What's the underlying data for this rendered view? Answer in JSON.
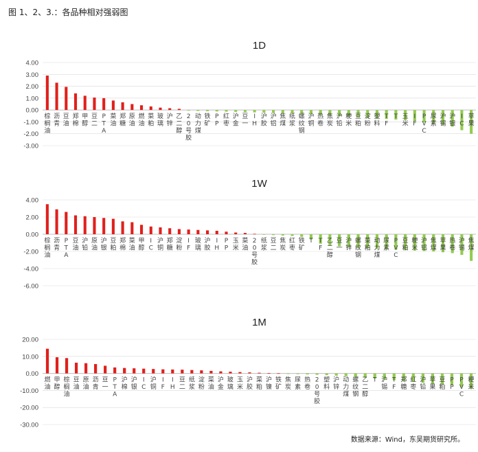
{
  "page_title": "图 1、2、3.：各品种相对强弱图",
  "source_text": "数据来源：Wind，东吴期货研究所。",
  "colors": {
    "positive": "#e0201c",
    "negative": "#92cc4f",
    "grid": "#d9d9d9",
    "axis": "#bfbfbf"
  },
  "chart_data": [
    {
      "type": "bar",
      "title": "1D",
      "ylim": [
        -3,
        4
      ],
      "yticks": [
        "4.00",
        "3.00",
        "2.00",
        "1.00",
        "0.00",
        "-1.00",
        "-2.00",
        "-3.00"
      ],
      "categories": [
        "棕榈油",
        "沥青",
        "豆油",
        "郑棉",
        "甲醇",
        "豆二",
        "PTA",
        "菜油",
        "郑糖",
        "原油",
        "燃油",
        "菜粕",
        "玻璃",
        "沪锌",
        "乙二醇",
        "20号胶",
        "动力煤",
        "铁矿",
        "PP",
        "红枣",
        "沪金",
        "豆一",
        "IH",
        "沪胶",
        "沪铝",
        "焦煤",
        "纸浆",
        "螺纹钢",
        "沪铜",
        "热卷",
        "焦炭",
        "沪铅",
        "粳米",
        "豆粕",
        "淀粉",
        "塑料",
        "TF",
        "T",
        "玉米",
        "IF",
        "PVC",
        "尿素",
        "沪锡",
        "沪银",
        "IC",
        "苹果"
      ],
      "values": [
        2.9,
        2.3,
        1.95,
        1.4,
        1.2,
        1.05,
        1.0,
        0.8,
        0.65,
        0.5,
        0.4,
        0.3,
        0.2,
        0.15,
        0.1,
        -0.05,
        -0.08,
        -0.1,
        -0.12,
        -0.14,
        -0.16,
        -0.18,
        -0.2,
        -0.22,
        -0.25,
        -0.28,
        -0.3,
        -0.33,
        -0.36,
        -0.4,
        -0.45,
        -0.5,
        -0.55,
        -0.6,
        -0.65,
        -0.7,
        -0.75,
        -0.8,
        -0.85,
        -0.95,
        -1.05,
        -1.15,
        -1.25,
        -1.4,
        -1.7,
        -2.0
      ]
    },
    {
      "type": "bar",
      "title": "1W",
      "ylim": [
        -6,
        4
      ],
      "yticks": [
        "4.00",
        "2.00",
        "0.00",
        "-2.00",
        "-4.00",
        "-6.00"
      ],
      "categories": [
        "棕榈油",
        "沥青",
        "PTA",
        "豆油",
        "沪铅",
        "原油",
        "沪银",
        "豆粕",
        "郑棉",
        "菜油",
        "甲醇",
        "IC",
        "沪铜",
        "郑糖",
        "淀粉",
        "IF",
        "玻璃",
        "沪胶",
        "IH",
        "PP",
        "玉米",
        "菜油",
        "20号胶",
        "纸浆",
        "豆二",
        "焦炭",
        "红枣",
        "铁矿",
        "T",
        "TF",
        "乙二醇",
        "豆一",
        "沪锌",
        "螺纹钢",
        "菜粕",
        "动力煤",
        "尿素",
        "PVC",
        "豆粕",
        "粳米",
        "沪铝",
        "焦煤",
        "苹果",
        "热卷",
        "沪锡",
        "焦煤"
      ],
      "values": [
        3.5,
        2.9,
        2.6,
        2.2,
        2.1,
        2.0,
        1.9,
        1.8,
        1.5,
        1.4,
        1.1,
        0.9,
        0.8,
        0.7,
        0.6,
        0.55,
        0.5,
        0.45,
        0.4,
        0.3,
        0.2,
        0.15,
        0.05,
        -0.05,
        -0.1,
        -0.15,
        -0.2,
        -0.3,
        -0.6,
        -1.1,
        -1.3,
        -1.4,
        -1.5,
        -1.6,
        -1.65,
        -1.7,
        -1.75,
        -1.8,
        -1.85,
        -1.9,
        -1.95,
        -2.0,
        -2.1,
        -2.2,
        -2.4,
        -3.1
      ]
    },
    {
      "type": "bar",
      "title": "1M",
      "ylim": [
        -30,
        20
      ],
      "yticks": [
        "20.00",
        "10.00",
        "0.00",
        "-10.00",
        "-20.00",
        "-30.00"
      ],
      "categories": [
        "燃油",
        "甲醇",
        "棕榈油",
        "豆油",
        "原油",
        "沥青",
        "豆一",
        "PTA",
        "沪棉",
        "沪银",
        "IC",
        "沪铜",
        "IF",
        "IH",
        "豆二",
        "纸浆",
        "淀粉",
        "菜油",
        "沪金",
        "玻璃",
        "玉米",
        "沪胶",
        "菜粕",
        "沪镍",
        "铁矿",
        "焦炭",
        "尿素",
        "热卷",
        "20号胶",
        "塑料",
        "沪锌",
        "动力煤",
        "螺纹钢",
        "乙二醇",
        "T",
        "沪锡",
        "TF",
        "郑糖",
        "红枣",
        "沪铅",
        "苹果",
        "豆粕",
        "PP",
        "PVC",
        "粳米"
      ],
      "values": [
        14.5,
        9.5,
        9.0,
        6.3,
        6.0,
        5.5,
        4.5,
        3.5,
        3.2,
        3.0,
        2.8,
        2.6,
        2.4,
        2.3,
        2.2,
        2.0,
        1.8,
        1.5,
        1.2,
        1.0,
        0.8,
        0.6,
        0.4,
        0.2,
        0.1,
        -0.2,
        -0.4,
        -0.6,
        -0.8,
        -1.0,
        -1.3,
        -1.6,
        -2.0,
        -2.5,
        -3.0,
        -3.5,
        -4.0,
        -4.5,
        -5.0,
        -5.5,
        -6.0,
        -6.5,
        -7.0,
        -8.0,
        -9.0
      ]
    }
  ]
}
